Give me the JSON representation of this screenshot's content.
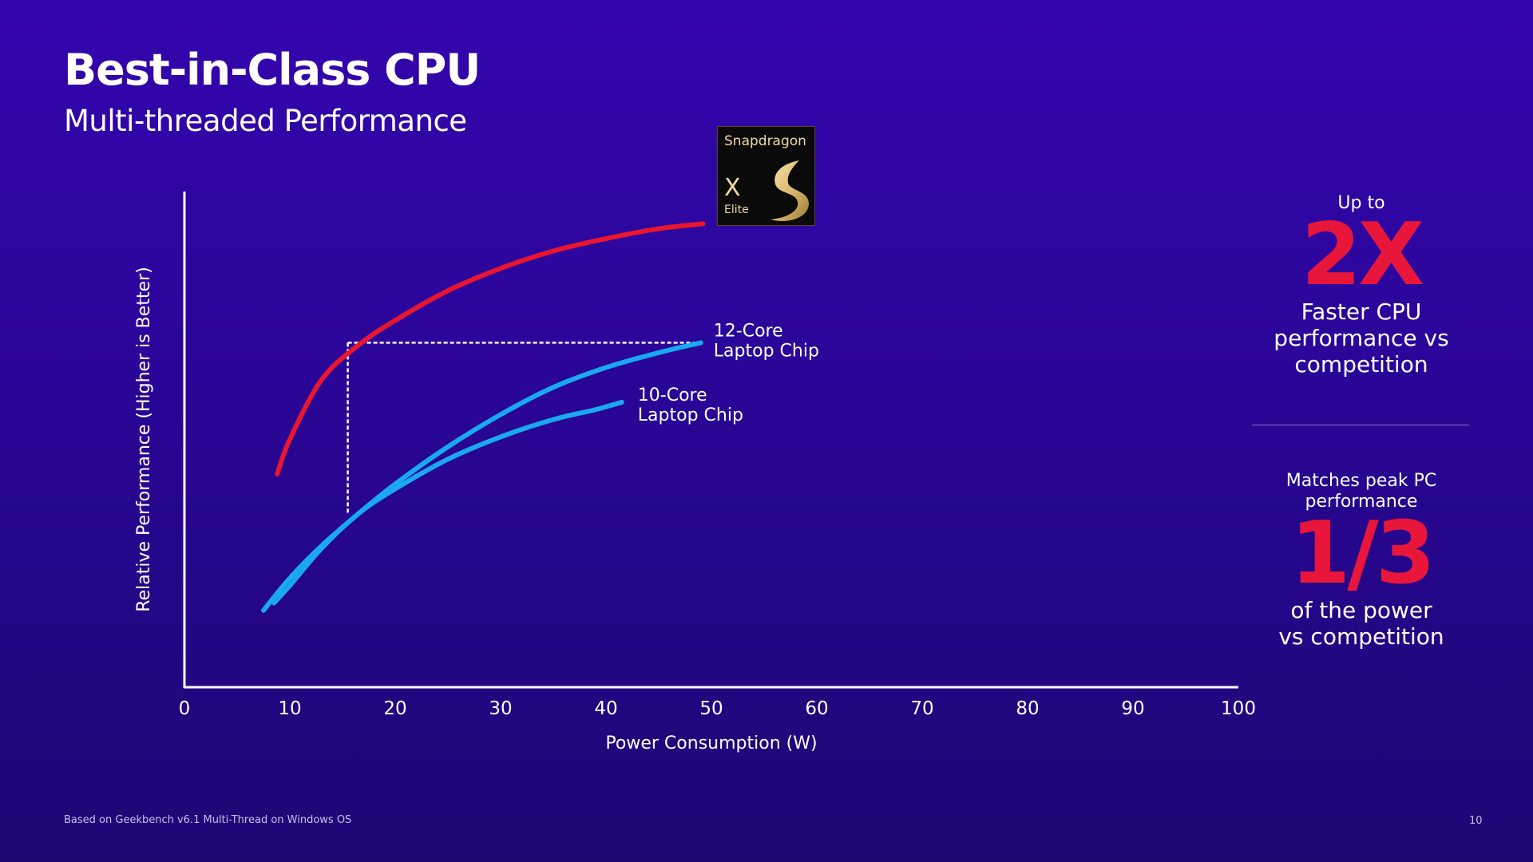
{
  "slide": {
    "title": "Best-in-Class CPU",
    "subtitle": "Multi-threaded Performance",
    "footnote": "Based on Geekbench v6.1 Multi-Thread on Windows OS",
    "page_number": "10"
  },
  "logo": {
    "brand": "Snapdragon",
    "model": "X",
    "tier": "Elite",
    "accent_color": "#d8b76a"
  },
  "stats": {
    "first": {
      "prefix": "Up to",
      "value": "2X",
      "text_lines": [
        "Faster CPU",
        "performance vs",
        "competition"
      ]
    },
    "second": {
      "prefix_lines": [
        "Matches peak PC",
        "performance"
      ],
      "value": "1/3",
      "text_lines": [
        "of the power",
        "vs competition"
      ]
    }
  },
  "chart_data": {
    "type": "line",
    "xlabel": "Power Consumption (W)",
    "ylabel": "Relative Performance (Higher is Better)",
    "xlim": [
      0,
      100
    ],
    "ylim": [
      0,
      100
    ],
    "x_ticks": [
      0,
      10,
      20,
      30,
      40,
      50,
      60,
      70,
      80,
      90,
      100
    ],
    "y_ticks_shown": false,
    "grid": false,
    "series": [
      {
        "color": "#e8162f",
        "points": [
          [
            8.8,
            43
          ],
          [
            10,
            50
          ],
          [
            13,
            62
          ],
          [
            16.5,
            69
          ],
          [
            20,
            74
          ],
          [
            25,
            80
          ],
          [
            30,
            84.5
          ],
          [
            35,
            88
          ],
          [
            40,
            90.5
          ],
          [
            45,
            92.5
          ],
          [
            49.2,
            93.5
          ]
        ]
      },
      {
        "name": "12-Core Laptop Chip",
        "label_lines": [
          "12-Core",
          "Laptop Chip"
        ],
        "color": "#1aa8f0",
        "points": [
          [
            7.5,
            15.5
          ],
          [
            10,
            22
          ],
          [
            13,
            28.5
          ],
          [
            16.5,
            35
          ],
          [
            20,
            41
          ],
          [
            25,
            48.5
          ],
          [
            30,
            55
          ],
          [
            35,
            60.5
          ],
          [
            40,
            64.5
          ],
          [
            45,
            67.5
          ],
          [
            49,
            69.5
          ]
        ]
      },
      {
        "name": "10-Core Laptop Chip",
        "label_lines": [
          "10-Core",
          "Laptop Chip"
        ],
        "color": "#1aa8f0",
        "points": [
          [
            8.5,
            17
          ],
          [
            10,
            20.5
          ],
          [
            13,
            28
          ],
          [
            16.5,
            35
          ],
          [
            20,
            40
          ],
          [
            25,
            46
          ],
          [
            30,
            50.5
          ],
          [
            35,
            54
          ],
          [
            39,
            56
          ],
          [
            41.5,
            57.5
          ]
        ]
      }
    ],
    "annotation": {
      "style": "dashed",
      "color": "#ffffff",
      "corner": [
        15.5,
        69.5
      ],
      "horizontal_to_x": 49,
      "vertical_to_y": 35
    }
  }
}
